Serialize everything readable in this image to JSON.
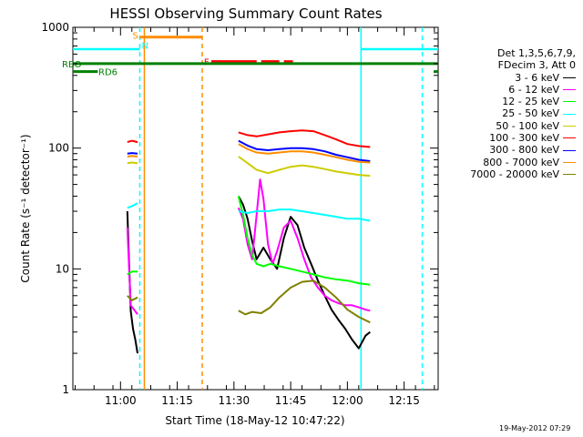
{
  "chart_data": {
    "type": "line",
    "title": "HESSI Observing Summary Count Rates",
    "xlabel": "Start Time (18-May-12 10:47:22)",
    "ylabel": "Count Rate (s⁻¹ detector⁻¹)",
    "yscale": "log",
    "ylim": [
      1,
      1000
    ],
    "xlim": [
      10.79,
      12.4
    ],
    "x_units": "hours UT",
    "x_ticks": [
      {
        "value": 11.0,
        "label": "11:00"
      },
      {
        "value": 11.25,
        "label": "11:15"
      },
      {
        "value": 11.5,
        "label": "11:30"
      },
      {
        "value": 11.75,
        "label": "11:45"
      },
      {
        "value": 12.0,
        "label": "12:00"
      },
      {
        "value": 12.25,
        "label": "12:15"
      }
    ],
    "y_ticks": [
      {
        "value": 1,
        "label": "1"
      },
      {
        "value": 10,
        "label": "10"
      },
      {
        "value": 100,
        "label": "100"
      },
      {
        "value": 1000,
        "label": "1000"
      }
    ],
    "legend_header": [
      "Det 1,3,5,6,7,9,",
      "FDecim 3, Att 0"
    ],
    "legend_position": "right",
    "series": [
      {
        "name": "3 - 6 keV",
        "color": "#000000",
        "segments": [
          {
            "x": [
              11.03,
              11.045,
              11.055,
              11.065,
              11.075
            ],
            "y": [
              30,
              4.5,
              3.2,
              2.6,
              2.0
            ]
          },
          {
            "x": [
              11.52,
              11.54,
              11.56,
              11.58,
              11.6,
              11.63,
              11.66,
              11.69,
              11.72,
              11.75,
              11.78,
              11.81,
              11.84,
              11.87,
              11.9,
              11.93,
              11.96,
              11.99,
              12.02,
              12.05,
              12.08,
              12.1
            ],
            "y": [
              40,
              34,
              26,
              17,
              12,
              15,
              12,
              10,
              18,
              27,
              23,
              15,
              11,
              8,
              6,
              4.6,
              3.8,
              3.2,
              2.6,
              2.2,
              2.8,
              3.0
            ]
          }
        ]
      },
      {
        "name": "6 - 12 keV",
        "color": "#ff00ff",
        "segments": [
          {
            "x": [
              11.03,
              11.045,
              11.06,
              11.075
            ],
            "y": [
              22,
              5.0,
              4.6,
              4.2
            ]
          },
          {
            "x": [
              11.52,
              11.54,
              11.56,
              11.58,
              11.6,
              11.615,
              11.63,
              11.65,
              11.67,
              11.69,
              11.72,
              11.75,
              11.78,
              11.81,
              11.84,
              11.87,
              11.9,
              11.93,
              11.96,
              11.99,
              12.02,
              12.05,
              12.08,
              12.1
            ],
            "y": [
              32,
              26,
              16,
              12,
              28,
              55,
              38,
              16,
              11,
              14,
              22,
              25,
              18,
              12,
              8.5,
              7.0,
              6.0,
              5.5,
              5.2,
              5.0,
              5.0,
              4.8,
              4.6,
              4.5
            ]
          }
        ]
      },
      {
        "name": "12 - 25 keV",
        "color": "#00ff00",
        "segments": [
          {
            "x": [
              11.03,
              11.05,
              11.075
            ],
            "y": [
              9,
              9.5,
              9.5
            ]
          },
          {
            "x": [
              11.52,
              11.54,
              11.56,
              11.58,
              11.6,
              11.63,
              11.66,
              11.7,
              11.75,
              11.8,
              11.85,
              11.9,
              11.95,
              12.0,
              12.05,
              12.1
            ],
            "y": [
              40,
              28,
              18,
              13,
              11,
              10.5,
              11,
              10.5,
              10,
              9.5,
              9,
              8.5,
              8.2,
              8.0,
              7.6,
              7.4
            ]
          }
        ]
      },
      {
        "name": "25 - 50 keV",
        "color": "#00ffff",
        "segments": [
          {
            "x": [
              11.03,
              11.05,
              11.075
            ],
            "y": [
              32,
              33,
              35
            ]
          },
          {
            "x": [
              11.52,
              11.56,
              11.6,
              11.65,
              11.7,
              11.75,
              11.8,
              11.85,
              11.9,
              11.95,
              12.0,
              12.05,
              12.1
            ],
            "y": [
              30,
              29,
              30,
              30,
              31,
              31,
              30,
              29,
              28,
              27,
              26,
              26,
              25
            ]
          }
        ]
      },
      {
        "name": "50 - 100 keV",
        "color": "#cccc00",
        "segments": [
          {
            "x": [
              11.03,
              11.05,
              11.075
            ],
            "y": [
              75,
              76,
              75
            ]
          },
          {
            "x": [
              11.52,
              11.56,
              11.6,
              11.65,
              11.7,
              11.75,
              11.8,
              11.85,
              11.9,
              11.95,
              12.0,
              12.05,
              12.1
            ],
            "y": [
              85,
              75,
              66,
              62,
              66,
              70,
              72,
              70,
              67,
              64,
              62,
              60,
              59
            ]
          }
        ]
      },
      {
        "name": "100 - 300 keV",
        "color": "#ff0000",
        "segments": [
          {
            "x": [
              11.03,
              11.05,
              11.075
            ],
            "y": [
              112,
              115,
              112
            ]
          },
          {
            "x": [
              11.52,
              11.56,
              11.6,
              11.65,
              11.7,
              11.75,
              11.8,
              11.85,
              11.9,
              11.95,
              12.0,
              12.05,
              12.1
            ],
            "y": [
              135,
              128,
              125,
              130,
              135,
              138,
              140,
              138,
              128,
              118,
              108,
              104,
              102
            ]
          }
        ]
      },
      {
        "name": "300 - 800 keV",
        "color": "#0000ff",
        "segments": [
          {
            "x": [
              11.03,
              11.05,
              11.075
            ],
            "y": [
              90,
              91,
              90
            ]
          },
          {
            "x": [
              11.52,
              11.56,
              11.6,
              11.65,
              11.7,
              11.75,
              11.8,
              11.85,
              11.9,
              11.95,
              12.0,
              12.05,
              12.1
            ],
            "y": [
              115,
              105,
              98,
              96,
              98,
              100,
              100,
              98,
              94,
              88,
              84,
              80,
              78
            ]
          }
        ]
      },
      {
        "name": "800 - 7000 keV",
        "color": "#ff8c00",
        "segments": [
          {
            "x": [
              11.03,
              11.05,
              11.075
            ],
            "y": [
              85,
              86,
              85
            ]
          },
          {
            "x": [
              11.52,
              11.56,
              11.6,
              11.65,
              11.7,
              11.75,
              11.8,
              11.85,
              11.9,
              11.95,
              12.0,
              12.05,
              12.1
            ],
            "y": [
              108,
              98,
              92,
              90,
              92,
              94,
              94,
              92,
              88,
              84,
              80,
              77,
              76
            ]
          }
        ]
      },
      {
        "name": "7000 - 20000 keV",
        "color": "#808000",
        "segments": [
          {
            "x": [
              11.03,
              11.05,
              11.075
            ],
            "y": [
              6,
              5.5,
              5.8
            ]
          },
          {
            "x": [
              11.52,
              11.55,
              11.58,
              11.62,
              11.66,
              11.7,
              11.75,
              11.8,
              11.85,
              11.9,
              11.95,
              12.0,
              12.05,
              12.1
            ],
            "y": [
              4.5,
              4.2,
              4.4,
              4.3,
              4.8,
              5.8,
              7.0,
              7.8,
              8.0,
              7.0,
              5.8,
              4.6,
              4.0,
              3.6
            ]
          }
        ]
      }
    ],
    "flag_bars": [
      {
        "label": "S",
        "color": "#ff8c00",
        "y": 830,
        "x": [
          11.085,
          11.36
        ]
      },
      {
        "label": "N",
        "color": "#00ffff",
        "y": 830,
        "x": [
          11.085,
          11.09
        ]
      },
      {
        "label": "F",
        "color": "#ff0000",
        "y": 520,
        "x": [
          11.4,
          11.76
        ]
      },
      {
        "label": "RBO",
        "color": "#008000",
        "y": 500,
        "x": [
          10.79,
          12.4
        ]
      },
      {
        "label": "RD6",
        "color": "#008000",
        "y": 430,
        "x": [
          10.79,
          10.9
        ]
      }
    ],
    "vertical_lines": [
      {
        "x": 11.085,
        "color": "#00ffff",
        "style": "dashed"
      },
      {
        "x": 11.105,
        "color": "#ff8c00",
        "style": "solid"
      },
      {
        "x": 11.36,
        "color": "#ff8c00",
        "style": "dashed"
      },
      {
        "x": 12.06,
        "color": "#00ffff",
        "style": "solid"
      },
      {
        "x": 12.33,
        "color": "#00ffff",
        "style": "dashed"
      }
    ],
    "horizontal_segments": [
      {
        "x": [
          10.79,
          11.085
        ],
        "y": 660,
        "color": "#00ffff"
      },
      {
        "x": [
          12.06,
          12.4
        ],
        "y": 660,
        "color": "#00ffff"
      }
    ]
  },
  "timestamp": "19-May-2012 07:29"
}
